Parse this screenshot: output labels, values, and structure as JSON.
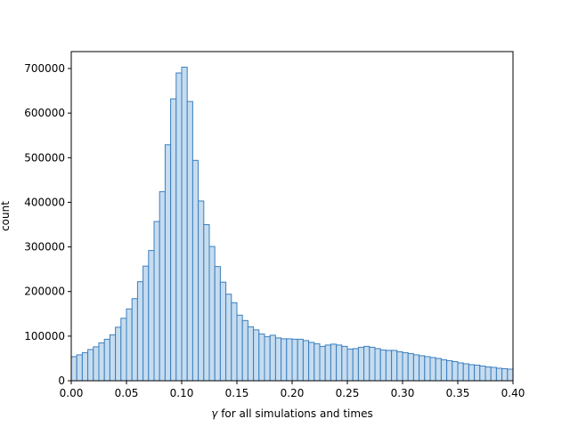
{
  "chart_data": {
    "type": "bar",
    "subtype": "histogram",
    "xlabel_prefix": "γ",
    "xlabel_rest": " for all simulations and times",
    "ylabel": "count",
    "xlim": [
      0.0,
      0.4
    ],
    "ylim": [
      0,
      700000
    ],
    "x_ticks": [
      "0.00",
      "0.05",
      "0.10",
      "0.15",
      "0.20",
      "0.25",
      "0.30",
      "0.35",
      "0.40"
    ],
    "y_ticks": [
      "0",
      "100000",
      "200000",
      "300000",
      "400000",
      "500000",
      "600000",
      "700000"
    ],
    "bin_width": 0.005,
    "bin_start": 0.0,
    "values": [
      54000,
      58000,
      63000,
      70000,
      76000,
      85000,
      93000,
      103000,
      120000,
      140000,
      161000,
      184000,
      222000,
      257000,
      292000,
      357000,
      424000,
      529000,
      632000,
      690000,
      703000,
      626000,
      494000,
      403000,
      350000,
      301000,
      256000,
      221000,
      194000,
      175000,
      147000,
      135000,
      121000,
      114000,
      105000,
      99000,
      102000,
      96000,
      94000,
      94000,
      93000,
      93000,
      90000,
      86000,
      83000,
      77000,
      80000,
      82000,
      80000,
      77000,
      71000,
      72000,
      75000,
      77000,
      75000,
      72000,
      69000,
      68000,
      68000,
      65000,
      63000,
      61000,
      58000,
      56000,
      54000,
      52000,
      50000,
      47000,
      45000,
      43000,
      40000,
      38000,
      36000,
      35000,
      33000,
      31000,
      30000,
      28000,
      27000,
      26000
    ],
    "bar_fill": "#c6dcef",
    "bar_stroke": "#3b7fbf",
    "grid": false,
    "legend": "none"
  }
}
